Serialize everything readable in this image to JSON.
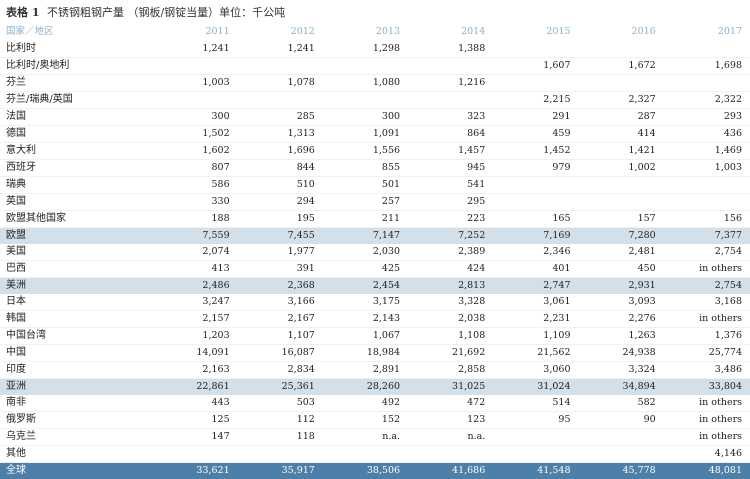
{
  "table": {
    "label": "表格 1",
    "caption": "不锈钢粗钢产量 （钢板/钢锭当量）单位：千公吨",
    "header": [
      "国家／地区",
      "2011",
      "2012",
      "2013",
      "2014",
      "2015",
      "2016",
      "2017"
    ],
    "rows": [
      {
        "name": "比利时",
        "values": [
          "1,241",
          "1,241",
          "1,298",
          "1,388",
          "",
          "",
          ""
        ],
        "style": "normal"
      },
      {
        "name": "比利时/奥地利",
        "values": [
          "",
          "",
          "",
          "",
          "1,607",
          "1,672",
          "1,698"
        ],
        "style": "normal"
      },
      {
        "name": "芬兰",
        "values": [
          "1,003",
          "1,078",
          "1,080",
          "1,216",
          "",
          "",
          ""
        ],
        "style": "normal"
      },
      {
        "name": "芬兰/瑞典/英国",
        "values": [
          "",
          "",
          "",
          "",
          "2,215",
          "2,327",
          "2,322"
        ],
        "style": "normal"
      },
      {
        "name": "法国",
        "values": [
          "300",
          "285",
          "300",
          "323",
          "291",
          "287",
          "293"
        ],
        "style": "normal"
      },
      {
        "name": "德国",
        "values": [
          "1,502",
          "1,313",
          "1,091",
          "864",
          "459",
          "414",
          "436"
        ],
        "style": "normal"
      },
      {
        "name": "意大利",
        "values": [
          "1,602",
          "1,696",
          "1,556",
          "1,457",
          "1,452",
          "1,421",
          "1,469"
        ],
        "style": "normal"
      },
      {
        "name": "西班牙",
        "values": [
          "807",
          "844",
          "855",
          "945",
          "979",
          "1,002",
          "1,003"
        ],
        "style": "normal"
      },
      {
        "name": "瑞典",
        "values": [
          "586",
          "510",
          "501",
          "541",
          "",
          "",
          ""
        ],
        "style": "normal"
      },
      {
        "name": "英国",
        "values": [
          "330",
          "294",
          "257",
          "295",
          "",
          "",
          ""
        ],
        "style": "normal"
      },
      {
        "name": "欧盟其他国家",
        "values": [
          "188",
          "195",
          "211",
          "223",
          "165",
          "157",
          "156"
        ],
        "style": "normal"
      },
      {
        "name": "欧盟",
        "values": [
          "7,559",
          "7,455",
          "7,147",
          "7,252",
          "7,169",
          "7,280",
          "7,377"
        ],
        "style": "highlight"
      },
      {
        "name": "美国",
        "values": [
          "2,074",
          "1,977",
          "2,030",
          "2,389",
          "2,346",
          "2,481",
          "2,754"
        ],
        "style": "normal"
      },
      {
        "name": "巴西",
        "values": [
          "413",
          "391",
          "425",
          "424",
          "401",
          "450",
          "in others"
        ],
        "style": "normal"
      },
      {
        "name": "美洲",
        "values": [
          "2,486",
          "2,368",
          "2,454",
          "2,813",
          "2,747",
          "2,931",
          "2,754"
        ],
        "style": "highlight"
      },
      {
        "name": "日本",
        "values": [
          "3,247",
          "3,166",
          "3,175",
          "3,328",
          "3,061",
          "3,093",
          "3,168"
        ],
        "style": "normal"
      },
      {
        "name": "韩国",
        "values": [
          "2,157",
          "2,167",
          "2,143",
          "2,038",
          "2,231",
          "2,276",
          "in others"
        ],
        "style": "normal"
      },
      {
        "name": "中国台湾",
        "values": [
          "1,203",
          "1,107",
          "1,067",
          "1,108",
          "1,109",
          "1,263",
          "1,376"
        ],
        "style": "normal"
      },
      {
        "name": "中国",
        "values": [
          "14,091",
          "16,087",
          "18,984",
          "21,692",
          "21,562",
          "24,938",
          "25,774"
        ],
        "style": "normal"
      },
      {
        "name": "印度",
        "values": [
          "2,163",
          "2,834",
          "2,891",
          "2,858",
          "3,060",
          "3,324",
          "3,486"
        ],
        "style": "normal"
      },
      {
        "name": "亚洲",
        "values": [
          "22,861",
          "25,361",
          "28,260",
          "31,025",
          "31,024",
          "34,894",
          "33,804"
        ],
        "style": "highlight"
      },
      {
        "name": "南非",
        "values": [
          "443",
          "503",
          "492",
          "472",
          "514",
          "582",
          "in others"
        ],
        "style": "normal"
      },
      {
        "name": "俄罗斯",
        "values": [
          "125",
          "112",
          "152",
          "123",
          "95",
          "90",
          "in others"
        ],
        "style": "normal"
      },
      {
        "name": "乌克兰",
        "values": [
          "147",
          "118",
          "n.a.",
          "n.a.",
          "",
          "",
          "in others"
        ],
        "style": "normal"
      },
      {
        "name": "其他",
        "values": [
          "",
          "",
          "",
          "",
          "",
          "",
          "4,146"
        ],
        "style": "normal"
      },
      {
        "name": "全球",
        "values": [
          "33,621",
          "35,917",
          "38,506",
          "41,686",
          "41,548",
          "45,778",
          "48,081"
        ],
        "style": "total"
      }
    ]
  }
}
